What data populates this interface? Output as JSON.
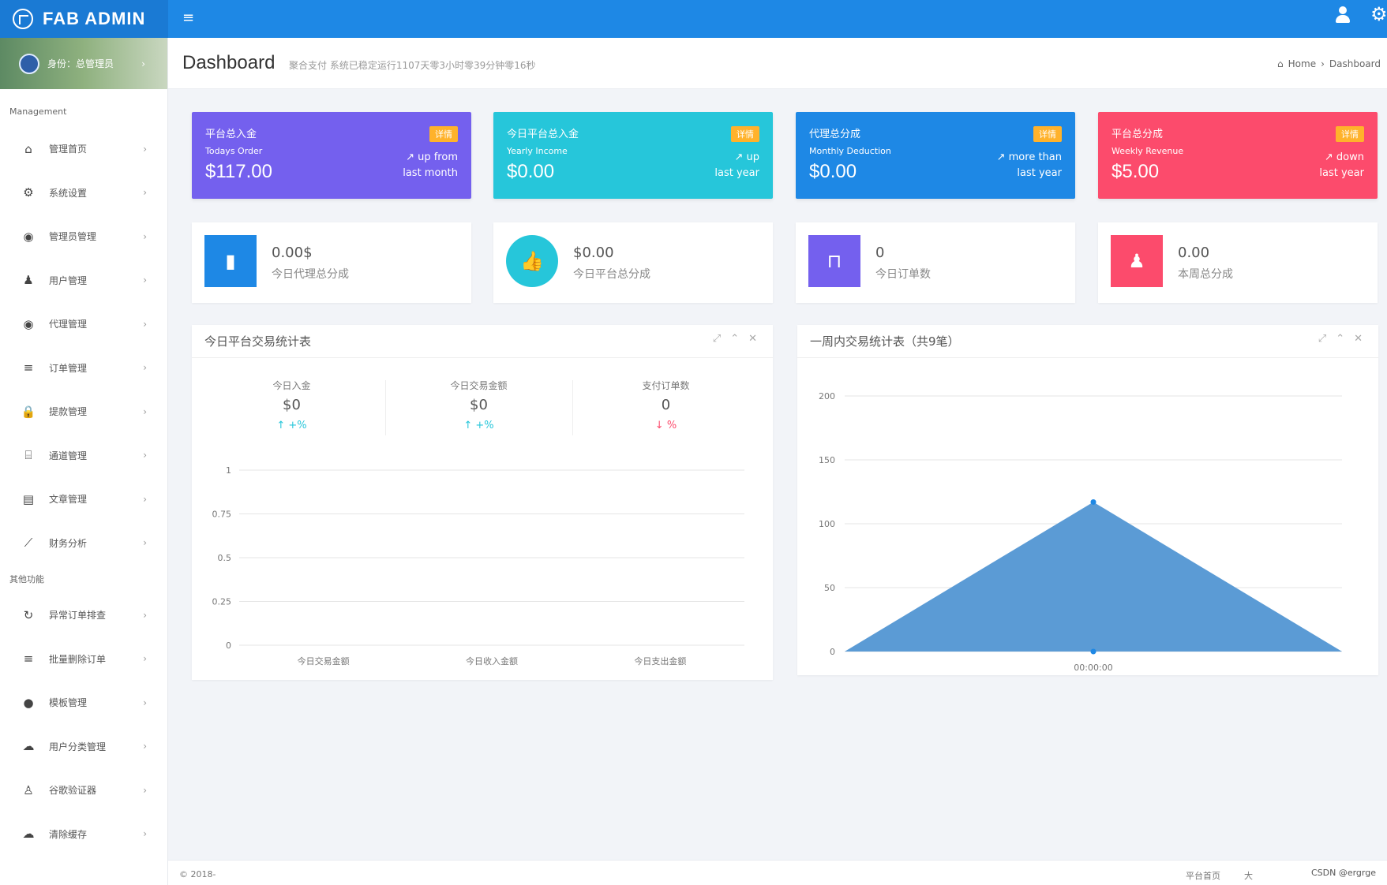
{
  "brand": {
    "title": "FAB ADMIN"
  },
  "header": {
    "menu_icon": "≡"
  },
  "sidebar": {
    "profile_label": "身份：总管理员",
    "section_management": "Management",
    "section_other": "其他功能",
    "items": [
      {
        "label": "管理首页",
        "icon": "home-icon"
      },
      {
        "label": "系统设置",
        "icon": "gears-icon"
      },
      {
        "label": "管理员管理",
        "icon": "user-circle-icon"
      },
      {
        "label": "用户管理",
        "icon": "users-icon"
      },
      {
        "label": "代理管理",
        "icon": "user-circle-icon"
      },
      {
        "label": "订单管理",
        "icon": "list-icon"
      },
      {
        "label": "提款管理",
        "icon": "lock-icon"
      },
      {
        "label": "通道管理",
        "icon": "bank-icon"
      },
      {
        "label": "文章管理",
        "icon": "book-icon"
      },
      {
        "label": "财务分析",
        "icon": "line-chart-icon"
      }
    ],
    "other_items": [
      {
        "label": "异常订单排查",
        "icon": "refresh-icon"
      },
      {
        "label": "批量删除订单",
        "icon": "list-icon"
      },
      {
        "label": "模板管理",
        "icon": "apple-icon"
      },
      {
        "label": "用户分类管理",
        "icon": "wechat-icon"
      },
      {
        "label": "谷歌验证器",
        "icon": "user-icon"
      },
      {
        "label": "清除缓存",
        "icon": "cloud-icon"
      }
    ]
  },
  "page": {
    "title": "Dashboard",
    "subtitle": "聚合支付 系统已稳定运行1107天零3小时零39分钟零16秒",
    "breadcrumb": [
      "Home",
      "Dashboard"
    ]
  },
  "stat_cards": [
    {
      "label": "平台总入金",
      "sub": "Todays Order",
      "value": "$117.00",
      "badge": "详情",
      "trend_line1": "up from",
      "trend_line2": "last month",
      "color": "#7460ee"
    },
    {
      "label": "今日平台总入金",
      "sub": "Yearly Income",
      "value": "$0.00",
      "badge": "详情",
      "trend_line1": "up",
      "trend_line2": "last year",
      "color": "#26c6da"
    },
    {
      "label": "代理总分成",
      "sub": "Monthly Deduction",
      "value": "$0.00",
      "badge": "详情",
      "trend_line1": "more than",
      "trend_line2": "last year",
      "color": "#1e88e5"
    },
    {
      "label": "平台总分成",
      "sub": "Weekly Revenue",
      "value": "$5.00",
      "badge": "详情",
      "trend_line1": "down",
      "trend_line2": "last year",
      "color": "#fc4b6c"
    }
  ],
  "info_cards": [
    {
      "value": "0.00$",
      "label": "今日代理总分成",
      "icon": "bar-chart-icon",
      "color": "#1e88e5"
    },
    {
      "value": "$0.00",
      "label": "今日平台总分成",
      "icon": "thumbs-up-icon",
      "color": "#26c6da"
    },
    {
      "value": "0",
      "label": "今日订单数",
      "icon": "shopping-bag-icon",
      "color": "#7460ee"
    },
    {
      "value": "0.00",
      "label": "本周总分成",
      "icon": "users-icon",
      "color": "#fc4b6c"
    }
  ],
  "panel_left": {
    "title": "今日平台交易统计表",
    "kpis": [
      {
        "label": "今日入金",
        "value": "$0",
        "change": "+%",
        "dir": "up"
      },
      {
        "label": "今日交易金额",
        "value": "$0",
        "change": "+%",
        "dir": "up"
      },
      {
        "label": "支付订单数",
        "value": "0",
        "change": "%",
        "dir": "down"
      }
    ]
  },
  "panel_right": {
    "title": "一周内交易统计表（共9笔）"
  },
  "chart_data": [
    {
      "type": "line",
      "categories": [
        "今日交易金额",
        "今日收入金额",
        "今日支出金额"
      ],
      "series": [
        {
          "values": [
            0,
            0,
            0
          ]
        }
      ],
      "ylim": [
        0,
        1
      ],
      "yticks": [
        "0",
        "0.25",
        "0.5",
        "0.75",
        "1"
      ],
      "grid": true
    },
    {
      "type": "area",
      "x_label_center": "00:00:00",
      "series": [
        {
          "values": [
            0,
            117,
            0
          ]
        }
      ],
      "ylim": [
        0,
        200
      ],
      "yticks": [
        "0",
        "50",
        "100",
        "150",
        "200"
      ],
      "grid": true,
      "color": "#5b9bd5"
    }
  ],
  "footer": {
    "copyright": "© 2018-",
    "links": [
      "平台首页",
      "大"
    ],
    "watermark": "CSDN @ergrge"
  }
}
